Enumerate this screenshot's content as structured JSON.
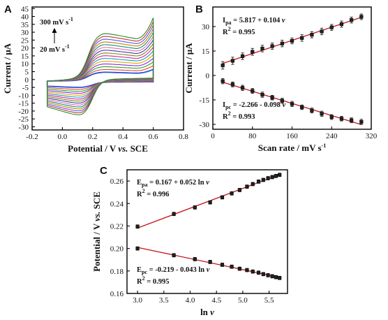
{
  "chart_data": [
    {
      "id": "A",
      "panel_label": "A",
      "type": "line",
      "xlabel": "Potential / V vs. SCE",
      "ylabel": "Current / μA",
      "xlim": [
        -0.2,
        0.8
      ],
      "ylim": [
        -32,
        46
      ],
      "xticks": [
        -0.2,
        0.0,
        0.2,
        0.4,
        0.6,
        0.8
      ],
      "yticks": [
        -30,
        -25,
        -20,
        -15,
        -10,
        -5,
        0,
        5,
        10,
        15,
        20,
        25,
        30,
        35,
        40,
        45
      ],
      "xticklabels": [
        "-0.2",
        "0.0",
        "0.2",
        "0.4",
        "0.6",
        "0.8"
      ],
      "yticklabels": [
        "-30",
        "-25",
        "-20",
        "-15",
        "-10",
        "-5",
        "0",
        "5",
        "10",
        "15",
        "20",
        "25",
        "30",
        "35",
        "40",
        "45"
      ],
      "legend_top": "300 mV s-1",
      "legend_bottom": "20 mV s-1",
      "scan_rates": [
        20,
        40,
        60,
        80,
        100,
        120,
        140,
        160,
        180,
        200,
        220,
        240,
        260,
        280,
        300
      ],
      "series_colors": [
        "#2b4fd8",
        "#e0472f",
        "#2aa02a",
        "#8a2be2",
        "#f0a000",
        "#14a3b8",
        "#d6209c",
        "#7a8a1a",
        "#3f3faa",
        "#e06ab0",
        "#1c8c6c",
        "#b8860b",
        "#5a5af0",
        "#c0392b",
        "#2c8c2c"
      ],
      "potential_range": [
        -0.1,
        0.6
      ],
      "anodic_peak": {
        "potential": 0.25,
        "current_at_20": 6.8,
        "current_at_300": 36.5
      },
      "cathodic_peak": {
        "potential": 0.18,
        "current_at_20": -4.2,
        "current_at_300": -28.0
      }
    },
    {
      "id": "B",
      "panel_label": "B",
      "type": "scatter",
      "xlabel": "Scan rate / mV s-1",
      "ylabel": "Current / μA",
      "xlim": [
        0,
        320
      ],
      "ylim": [
        -33,
        42
      ],
      "xticks": [
        0,
        80,
        160,
        240,
        320
      ],
      "yticks": [
        -30,
        -15,
        0,
        15,
        30
      ],
      "xticklabels": [
        "0",
        "80",
        "160",
        "240",
        "320"
      ],
      "yticklabels": [
        "-30",
        "-15",
        "0",
        "15",
        "30"
      ],
      "x": [
        20,
        40,
        60,
        80,
        100,
        120,
        140,
        160,
        180,
        200,
        220,
        240,
        260,
        280,
        300
      ],
      "series": [
        {
          "values": [
            6.2,
            9.0,
            11.8,
            14.5,
            16.5,
            18.0,
            19.6,
            21.2,
            23.0,
            25.0,
            27.0,
            29.5,
            31.5,
            34.0,
            36.0
          ],
          "errors": [
            2.3,
            2.2,
            2.0,
            2.1,
            2.0,
            1.9,
            2.0,
            1.8,
            2.0,
            1.9,
            2.0,
            1.8,
            1.9,
            1.8,
            1.7
          ],
          "fit": {
            "slope": 0.104,
            "intercept": 5.817
          }
        },
        {
          "values": [
            -3.5,
            -5.5,
            -7.6,
            -9.5,
            -11.8,
            -13.6,
            -15.5,
            -17.5,
            -19.5,
            -21.5,
            -23.5,
            -25.5,
            -26.5,
            -27.5,
            -28.5
          ],
          "errors": [
            1.6,
            1.5,
            1.6,
            1.5,
            1.6,
            1.4,
            1.5,
            1.6,
            1.4,
            1.5,
            1.6,
            1.5,
            1.4,
            1.5,
            1.6
          ],
          "fit": {
            "slope": -0.098,
            "intercept": -2.266
          }
        }
      ],
      "annotations": [
        {
          "name": "ipa",
          "sym": "I",
          "sub": "pa",
          "eq": "=  5.817 +  0.104",
          "var": "ν",
          "r2": "= 0.995"
        },
        {
          "name": "ipc",
          "sym": "I",
          "sub": "pc",
          "eq": "= -2.266 - 0.098",
          "var": "ν",
          "r2": "= 0.993"
        }
      ]
    },
    {
      "id": "C",
      "panel_label": "C",
      "type": "scatter",
      "xlabel": "ln ν",
      "ylabel": "Potential / V vs. SCE",
      "xlim": [
        2.8,
        5.85
      ],
      "ylim": [
        0.16,
        0.27
      ],
      "xticks": [
        3.0,
        3.5,
        4.0,
        4.5,
        5.0,
        5.5
      ],
      "yticks": [
        0.16,
        0.18,
        0.2,
        0.22,
        0.24,
        0.26
      ],
      "xticklabels": [
        "3.0",
        "3.5",
        "4.0",
        "4.5",
        "5.0",
        "5.5"
      ],
      "yticklabels": [
        "0.16",
        "0.18",
        "0.20",
        "0.22",
        "0.24",
        "0.26"
      ],
      "x": [
        3.0,
        3.69,
        4.09,
        4.38,
        4.61,
        4.79,
        4.94,
        5.08,
        5.19,
        5.3,
        5.39,
        5.48,
        5.56,
        5.63,
        5.7
      ],
      "series": [
        {
          "values": [
            0.2195,
            0.2307,
            0.2365,
            0.241,
            0.2455,
            0.249,
            0.252,
            0.255,
            0.2573,
            0.2595,
            0.261,
            0.2625,
            0.2635,
            0.2645,
            0.2655
          ],
          "errors": [
            0.0015,
            0.0015,
            0.0015,
            0.0015,
            0.0015,
            0.0015,
            0.0015,
            0.0015,
            0.0015,
            0.0015,
            0.0015,
            0.0015,
            0.0015,
            0.0015,
            0.0015
          ],
          "fit": {
            "slope": 0.052,
            "intercept": 0.167
          }
        },
        {
          "values": [
            0.2,
            0.194,
            0.1905,
            0.188,
            0.1855,
            0.1838,
            0.182,
            0.1808,
            0.1795,
            0.1785,
            0.1772,
            0.1762,
            0.1753,
            0.1745,
            0.1738
          ],
          "errors": [
            0.0015,
            0.0015,
            0.0015,
            0.0015,
            0.0015,
            0.0015,
            0.0015,
            0.0015,
            0.0015,
            0.0015,
            0.0015,
            0.0015,
            0.0015,
            0.0015,
            0.0015
          ],
          "fit": {
            "slope": -0.043,
            "intercept": -0.219
          }
        }
      ],
      "annotations": [
        {
          "name": "epa",
          "sym": "E",
          "sub": "pa",
          "eq": "= 0.167 + 0.052 ln",
          "var": "ν",
          "r2": "= 0.996"
        },
        {
          "name": "epc",
          "sym": "E",
          "sub": "pc",
          "eq": "= -0.219 - 0.043 ln",
          "var": "ν",
          "r2": "= 0.995"
        }
      ]
    }
  ]
}
